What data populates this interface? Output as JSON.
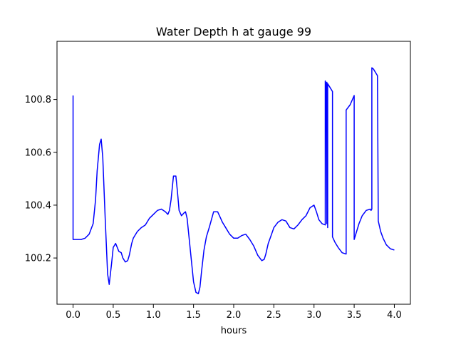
{
  "chart_data": {
    "type": "line",
    "title": "Water Depth h at gauge 99",
    "xlabel": "hours",
    "ylabel": "",
    "xlim": [
      -0.2,
      4.2
    ],
    "ylim": [
      100.025,
      101.02
    ],
    "xticks": [
      0.0,
      0.5,
      1.0,
      1.5,
      2.0,
      2.5,
      3.0,
      3.5,
      4.0
    ],
    "xtick_labels": [
      "0.0",
      "0.5",
      "1.0",
      "1.5",
      "2.0",
      "2.5",
      "3.0",
      "3.5",
      "4.0"
    ],
    "yticks": [
      100.2,
      100.4,
      100.6,
      100.8
    ],
    "ytick_labels": [
      "100.2",
      "100.4",
      "100.6",
      "100.8"
    ],
    "grid": false,
    "series": [
      {
        "color": "#0000ff",
        "x": [
          0.0,
          0.0,
          0.01,
          0.1,
          0.15,
          0.2,
          0.25,
          0.28,
          0.3,
          0.33,
          0.35,
          0.37,
          0.4,
          0.43,
          0.45,
          0.48,
          0.5,
          0.53,
          0.55,
          0.57,
          0.6,
          0.62,
          0.65,
          0.68,
          0.7,
          0.73,
          0.75,
          0.8,
          0.85,
          0.9,
          0.95,
          1.0,
          1.05,
          1.1,
          1.15,
          1.18,
          1.2,
          1.22,
          1.25,
          1.28,
          1.3,
          1.32,
          1.35,
          1.38,
          1.4,
          1.42,
          1.45,
          1.48,
          1.5,
          1.53,
          1.56,
          1.58,
          1.6,
          1.63,
          1.66,
          1.7,
          1.75,
          1.8,
          1.83,
          1.86,
          1.9,
          1.95,
          2.0,
          2.05,
          2.1,
          2.15,
          2.2,
          2.25,
          2.3,
          2.35,
          2.38,
          2.4,
          2.43,
          2.46,
          2.5,
          2.55,
          2.6,
          2.65,
          2.7,
          2.75,
          2.8,
          2.85,
          2.9,
          2.95,
          3.0,
          3.03,
          3.06,
          3.1,
          3.14,
          3.14,
          3.15,
          3.16,
          3.16,
          3.17,
          3.17,
          3.19,
          3.23,
          3.23,
          3.26,
          3.3,
          3.35,
          3.4,
          3.4,
          3.45,
          3.5,
          3.5,
          3.53,
          3.56,
          3.6,
          3.65,
          3.7,
          3.71,
          3.72,
          3.72,
          3.74,
          3.78,
          3.79,
          3.8,
          3.83,
          3.86,
          3.9,
          3.95,
          4.0
        ],
        "y": [
          100.815,
          100.27,
          100.27,
          100.27,
          100.275,
          100.29,
          100.33,
          100.42,
          100.53,
          100.63,
          100.65,
          100.58,
          100.35,
          100.14,
          100.1,
          100.18,
          100.24,
          100.255,
          100.24,
          100.225,
          100.22,
          100.2,
          100.185,
          100.19,
          100.21,
          100.255,
          100.275,
          100.3,
          100.315,
          100.325,
          100.35,
          100.365,
          100.38,
          100.385,
          100.375,
          100.365,
          100.38,
          100.42,
          100.51,
          100.51,
          100.45,
          100.38,
          100.36,
          100.37,
          100.375,
          100.35,
          100.26,
          100.17,
          100.11,
          100.07,
          100.065,
          100.09,
          100.15,
          100.23,
          100.28,
          100.32,
          100.375,
          100.375,
          100.355,
          100.335,
          100.315,
          100.29,
          100.275,
          100.275,
          100.285,
          100.29,
          100.27,
          100.245,
          100.21,
          100.19,
          100.195,
          100.215,
          100.255,
          100.28,
          100.315,
          100.335,
          100.345,
          100.34,
          100.315,
          100.31,
          100.325,
          100.345,
          100.36,
          100.39,
          100.4,
          100.375,
          100.345,
          100.33,
          100.325,
          100.87,
          100.86,
          100.33,
          100.865,
          100.315,
          100.86,
          100.85,
          100.83,
          100.28,
          100.26,
          100.24,
          100.22,
          100.215,
          100.76,
          100.78,
          100.815,
          100.27,
          100.3,
          100.33,
          100.36,
          100.38,
          100.385,
          100.38,
          100.385,
          100.92,
          100.915,
          100.895,
          100.89,
          100.34,
          100.3,
          100.275,
          100.25,
          100.235,
          100.23
        ]
      }
    ]
  }
}
